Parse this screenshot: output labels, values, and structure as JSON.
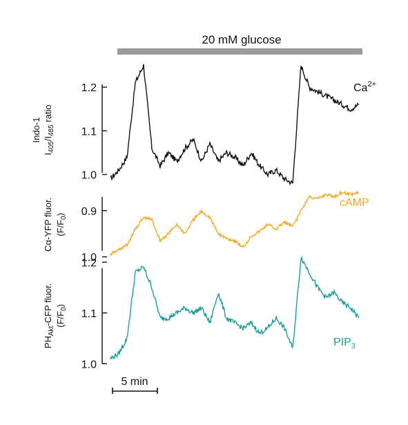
{
  "figure": {
    "stimulus_label": "20 mM glucose",
    "scale_bar_label": "5 min",
    "colors": {
      "calcium": "#111111",
      "camp": "#F5A623",
      "pip3": "#1A9E9A",
      "stimulus_bar": "#9B9B9B"
    }
  },
  "chart_data": [
    {
      "type": "line",
      "panel": "calcium",
      "ylabel_line1": "Indo-1",
      "ylabel_line2_main": "I",
      "ylabel_line2_sub1": "405",
      "ylabel_line2_mid": "/I",
      "ylabel_line2_sub2": "485",
      "ylabel_line2_end": " ratio",
      "trace_label_main": "Ca",
      "trace_label_sup": "2+",
      "yticks": [
        1.0,
        1.1,
        1.2
      ],
      "ytick_labels": [
        "1.0",
        "1.1",
        "1.2"
      ],
      "ylim": [
        0.985,
        1.265
      ],
      "inverted": false,
      "x": [
        0,
        1,
        2,
        3,
        4,
        5,
        6,
        7,
        8,
        9,
        10,
        11,
        12,
        13,
        14,
        15,
        16,
        17,
        18,
        19,
        20,
        21,
        22,
        23,
        24,
        25,
        26,
        27,
        28,
        29,
        30
      ],
      "values": [
        0.99,
        1.01,
        1.04,
        1.21,
        1.25,
        1.06,
        1.02,
        1.05,
        1.03,
        1.06,
        1.08,
        1.03,
        1.07,
        1.03,
        1.05,
        1.04,
        1.02,
        1.05,
        1.02,
        1.0,
        1.01,
        0.99,
        0.98,
        1.25,
        1.2,
        1.19,
        1.18,
        1.17,
        1.16,
        1.15,
        1.16
      ]
    },
    {
      "type": "line",
      "panel": "camp",
      "ylabel_line1": "Cα-YFP fluor.",
      "ylabel_line2_main": "(F/F",
      "ylabel_line2_sub": "0",
      "ylabel_line2_end": ")",
      "trace_label_main": "cAMP",
      "yticks": [
        0.9,
        1.0
      ],
      "ytick_labels": [
        "0.9",
        "1.0"
      ],
      "ylim": [
        0.86,
        1.02
      ],
      "inverted": true,
      "x": [
        0,
        1,
        2,
        3,
        4,
        5,
        6,
        7,
        8,
        9,
        10,
        11,
        12,
        13,
        14,
        15,
        16,
        17,
        18,
        19,
        20,
        21,
        22,
        23,
        24,
        25,
        26,
        27,
        28,
        29,
        30
      ],
      "values": [
        0.995,
        0.985,
        0.975,
        0.94,
        0.915,
        0.92,
        0.965,
        0.95,
        0.93,
        0.95,
        0.92,
        0.902,
        0.915,
        0.95,
        0.96,
        0.965,
        0.98,
        0.955,
        0.945,
        0.93,
        0.94,
        0.925,
        0.935,
        0.9,
        0.87,
        0.875,
        0.865,
        0.87,
        0.86,
        0.865,
        0.86
      ]
    },
    {
      "type": "line",
      "panel": "pip3",
      "ylabel_line1_main": "PH",
      "ylabel_line1_sub": "Akt",
      "ylabel_line1_end": "-CFP fluor.",
      "ylabel_line2_main": "(F/F",
      "ylabel_line2_sub": "0",
      "ylabel_line2_end": ")",
      "trace_label_main": "PIP",
      "trace_label_sub": "3",
      "yticks": [
        1.0,
        1.1,
        1.2
      ],
      "ytick_labels": [
        "1.0",
        "1.1",
        "1.2"
      ],
      "ylim": [
        0.995,
        1.21
      ],
      "inverted": false,
      "x": [
        0,
        1,
        2,
        3,
        4,
        5,
        6,
        7,
        8,
        9,
        10,
        11,
        12,
        13,
        14,
        15,
        16,
        17,
        18,
        19,
        20,
        21,
        22,
        23,
        24,
        25,
        26,
        27,
        28,
        29,
        30
      ],
      "values": [
        1.01,
        1.02,
        1.05,
        1.18,
        1.19,
        1.15,
        1.09,
        1.09,
        1.1,
        1.11,
        1.1,
        1.11,
        1.08,
        1.14,
        1.09,
        1.08,
        1.07,
        1.08,
        1.06,
        1.07,
        1.09,
        1.07,
        1.03,
        1.21,
        1.18,
        1.15,
        1.13,
        1.14,
        1.12,
        1.11,
        1.09
      ]
    }
  ]
}
